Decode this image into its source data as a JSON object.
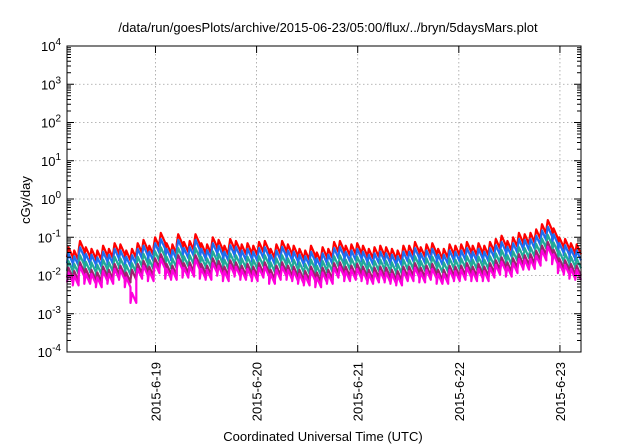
{
  "chart_data": {
    "type": "line",
    "title": "/data/run/goesPlots/archive/2015-06-23/05:00/flux/../bryn/5daysMars.plot",
    "xlabel": "Coordinated Universal Time (UTC)",
    "ylabel": "cGy/day",
    "yscale": "log",
    "ylim": [
      0.0001,
      10000
    ],
    "y_ticks": [
      {
        "value": 0.0001,
        "base": "10",
        "exp": "-4"
      },
      {
        "value": 0.001,
        "base": "10",
        "exp": "-3"
      },
      {
        "value": 0.01,
        "base": "10",
        "exp": "-2"
      },
      {
        "value": 0.1,
        "base": "10",
        "exp": "-1"
      },
      {
        "value": 1,
        "base": "10",
        "exp": "0"
      },
      {
        "value": 10,
        "base": "10",
        "exp": "1"
      },
      {
        "value": 100,
        "base": "10",
        "exp": "2"
      },
      {
        "value": 1000,
        "base": "10",
        "exp": "3"
      },
      {
        "value": 10000,
        "base": "10",
        "exp": "4"
      }
    ],
    "xlim": [
      "2015-06-18 03:00",
      "2015-06-23 05:00"
    ],
    "x_ticks": [
      "2015-6-19",
      "2015-6-20",
      "2015-6-21",
      "2015-6-22",
      "2015-6-23"
    ],
    "grid": true,
    "legend": "none",
    "series": [
      {
        "color": "#ff0000",
        "values": [
          0.055,
          0.045,
          0.08,
          0.055,
          0.05,
          0.045,
          0.06,
          0.05,
          0.07,
          0.065,
          0.045,
          0.05,
          0.07,
          0.085,
          0.06,
          0.1,
          0.13,
          0.07,
          0.065,
          0.12,
          0.075,
          0.08,
          0.12,
          0.07,
          0.065,
          0.1,
          0.085,
          0.06,
          0.09,
          0.08,
          0.065,
          0.07,
          0.06,
          0.075,
          0.08,
          0.05,
          0.065,
          0.08,
          0.065,
          0.06,
          0.05,
          0.045,
          0.06,
          0.04,
          0.055,
          0.05,
          0.075,
          0.08,
          0.06,
          0.065,
          0.07,
          0.06,
          0.05,
          0.055,
          0.06,
          0.055,
          0.05,
          0.045,
          0.06,
          0.06,
          0.075,
          0.055,
          0.065,
          0.07,
          0.05,
          0.05,
          0.065,
          0.06,
          0.065,
          0.075,
          0.06,
          0.07,
          0.06,
          0.075,
          0.09,
          0.11,
          0.08,
          0.1,
          0.13,
          0.12,
          0.13,
          0.16,
          0.22,
          0.28,
          0.17,
          0.1,
          0.09,
          0.07,
          0.065
        ]
      },
      {
        "color": "#1e6ef0",
        "values": [
          0.038,
          0.032,
          0.055,
          0.037,
          0.035,
          0.03,
          0.042,
          0.035,
          0.05,
          0.045,
          0.031,
          0.034,
          0.05,
          0.06,
          0.042,
          0.07,
          0.09,
          0.05,
          0.046,
          0.085,
          0.052,
          0.056,
          0.085,
          0.05,
          0.046,
          0.07,
          0.06,
          0.042,
          0.062,
          0.056,
          0.045,
          0.05,
          0.042,
          0.052,
          0.055,
          0.035,
          0.045,
          0.056,
          0.045,
          0.042,
          0.035,
          0.032,
          0.042,
          0.028,
          0.038,
          0.035,
          0.052,
          0.056,
          0.042,
          0.045,
          0.05,
          0.042,
          0.035,
          0.038,
          0.042,
          0.038,
          0.035,
          0.032,
          0.042,
          0.042,
          0.052,
          0.038,
          0.045,
          0.05,
          0.035,
          0.035,
          0.045,
          0.042,
          0.045,
          0.052,
          0.042,
          0.05,
          0.042,
          0.052,
          0.062,
          0.075,
          0.056,
          0.07,
          0.09,
          0.085,
          0.09,
          0.11,
          0.15,
          0.19,
          0.12,
          0.07,
          0.062,
          0.05,
          0.045
        ]
      },
      {
        "color": "#22aa99",
        "values": [
          0.024,
          0.02,
          0.034,
          0.023,
          0.022,
          0.019,
          0.026,
          0.022,
          0.031,
          0.028,
          0.019,
          0.021,
          0.031,
          0.037,
          0.026,
          0.043,
          0.055,
          0.031,
          0.028,
          0.052,
          0.032,
          0.034,
          0.052,
          0.031,
          0.028,
          0.043,
          0.037,
          0.026,
          0.038,
          0.034,
          0.028,
          0.031,
          0.026,
          0.032,
          0.034,
          0.022,
          0.028,
          0.034,
          0.028,
          0.026,
          0.022,
          0.02,
          0.026,
          0.018,
          0.024,
          0.022,
          0.032,
          0.034,
          0.026,
          0.028,
          0.031,
          0.026,
          0.022,
          0.024,
          0.026,
          0.024,
          0.022,
          0.02,
          0.026,
          0.026,
          0.032,
          0.024,
          0.028,
          0.031,
          0.022,
          0.022,
          0.028,
          0.026,
          0.028,
          0.032,
          0.026,
          0.031,
          0.026,
          0.032,
          0.038,
          0.046,
          0.034,
          0.043,
          0.055,
          0.052,
          0.055,
          0.067,
          0.092,
          0.115,
          0.073,
          0.043,
          0.038,
          0.031,
          0.028
        ]
      },
      {
        "color": "#a02070",
        "values": [
          0.016,
          0.013,
          0.022,
          0.015,
          0.014,
          0.012,
          0.017,
          0.014,
          0.02,
          0.018,
          0.012,
          0.014,
          0.02,
          0.024,
          0.017,
          0.028,
          0.036,
          0.02,
          0.018,
          0.034,
          0.021,
          0.022,
          0.034,
          0.02,
          0.018,
          0.028,
          0.024,
          0.017,
          0.025,
          0.022,
          0.018,
          0.02,
          0.017,
          0.021,
          0.022,
          0.014,
          0.018,
          0.022,
          0.018,
          0.017,
          0.014,
          0.013,
          0.017,
          0.012,
          0.016,
          0.014,
          0.021,
          0.022,
          0.017,
          0.018,
          0.02,
          0.017,
          0.014,
          0.016,
          0.017,
          0.016,
          0.014,
          0.013,
          0.017,
          0.017,
          0.021,
          0.016,
          0.018,
          0.02,
          0.014,
          0.014,
          0.018,
          0.017,
          0.018,
          0.021,
          0.017,
          0.02,
          0.017,
          0.021,
          0.025,
          0.03,
          0.022,
          0.028,
          0.036,
          0.034,
          0.036,
          0.044,
          0.06,
          0.075,
          0.047,
          0.028,
          0.025,
          0.02,
          0.018
        ]
      },
      {
        "color": "#ff00dd",
        "values": [
          0.012,
          0.01,
          0.017,
          0.011,
          0.011,
          0.009,
          0.013,
          0.011,
          0.015,
          0.014,
          0.009,
          0.0035,
          0.015,
          0.018,
          0.013,
          0.021,
          0.027,
          0.015,
          0.014,
          0.026,
          0.016,
          0.017,
          0.026,
          0.015,
          0.014,
          0.021,
          0.018,
          0.013,
          0.019,
          0.017,
          0.014,
          0.015,
          0.013,
          0.016,
          0.017,
          0.011,
          0.014,
          0.017,
          0.014,
          0.013,
          0.011,
          0.01,
          0.013,
          0.009,
          0.012,
          0.011,
          0.016,
          0.017,
          0.013,
          0.014,
          0.015,
          0.013,
          0.011,
          0.012,
          0.013,
          0.012,
          0.011,
          0.01,
          0.013,
          0.013,
          0.016,
          0.012,
          0.014,
          0.015,
          0.011,
          0.011,
          0.014,
          0.013,
          0.014,
          0.016,
          0.013,
          0.015,
          0.013,
          0.016,
          0.019,
          0.023,
          0.017,
          0.021,
          0.027,
          0.026,
          0.027,
          0.033,
          0.045,
          0.057,
          0.036,
          0.021,
          0.019,
          0.015,
          0.014
        ]
      }
    ]
  }
}
